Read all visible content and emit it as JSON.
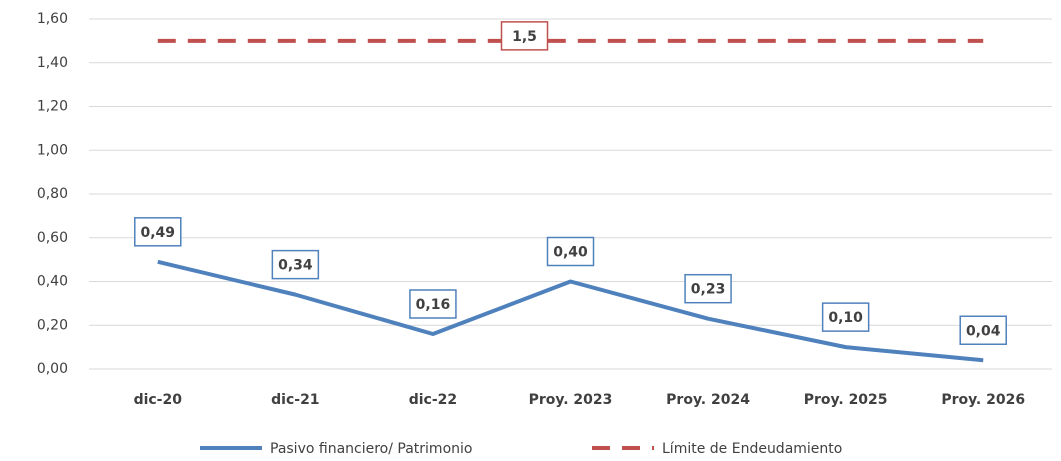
{
  "chart_data": {
    "type": "line",
    "categories": [
      "dic-20",
      "dic-21",
      "dic-22",
      "Proy. 2023",
      "Proy. 2024",
      "Proy. 2025",
      "Proy. 2026"
    ],
    "series": [
      {
        "name": "Pasivo financiero/ Patrimonio",
        "color": "#4f81bd",
        "style": "solid",
        "values": [
          0.49,
          0.34,
          0.16,
          0.4,
          0.23,
          0.1,
          0.04
        ],
        "value_labels": [
          "0,49",
          "0,34",
          "0,16",
          "0,40",
          "0,23",
          "0,10",
          "0,04"
        ]
      },
      {
        "name": "Límite de Endeudamiento",
        "color": "#c0504d",
        "style": "dashed",
        "values": [
          1.5,
          1.5,
          1.5,
          1.5,
          1.5,
          1.5,
          1.5
        ],
        "value_labels": [
          null,
          null,
          null,
          "1,5",
          null,
          null,
          null
        ]
      }
    ],
    "ylim": [
      0,
      1.6
    ],
    "yticks": [
      {
        "value": 0,
        "label": "0,00"
      },
      {
        "value": 0.2,
        "label": "0,20"
      },
      {
        "value": 0.4,
        "label": "0,40"
      },
      {
        "value": 0.6,
        "label": "0,60"
      },
      {
        "value": 0.8,
        "label": "0,80"
      },
      {
        "value": 1.0,
        "label": "1,00"
      },
      {
        "value": 1.2,
        "label": "1,20"
      },
      {
        "value": 1.4,
        "label": "1,40"
      },
      {
        "value": 1.6,
        "label": "1,60"
      }
    ],
    "grid": true,
    "legend": "bottom"
  }
}
